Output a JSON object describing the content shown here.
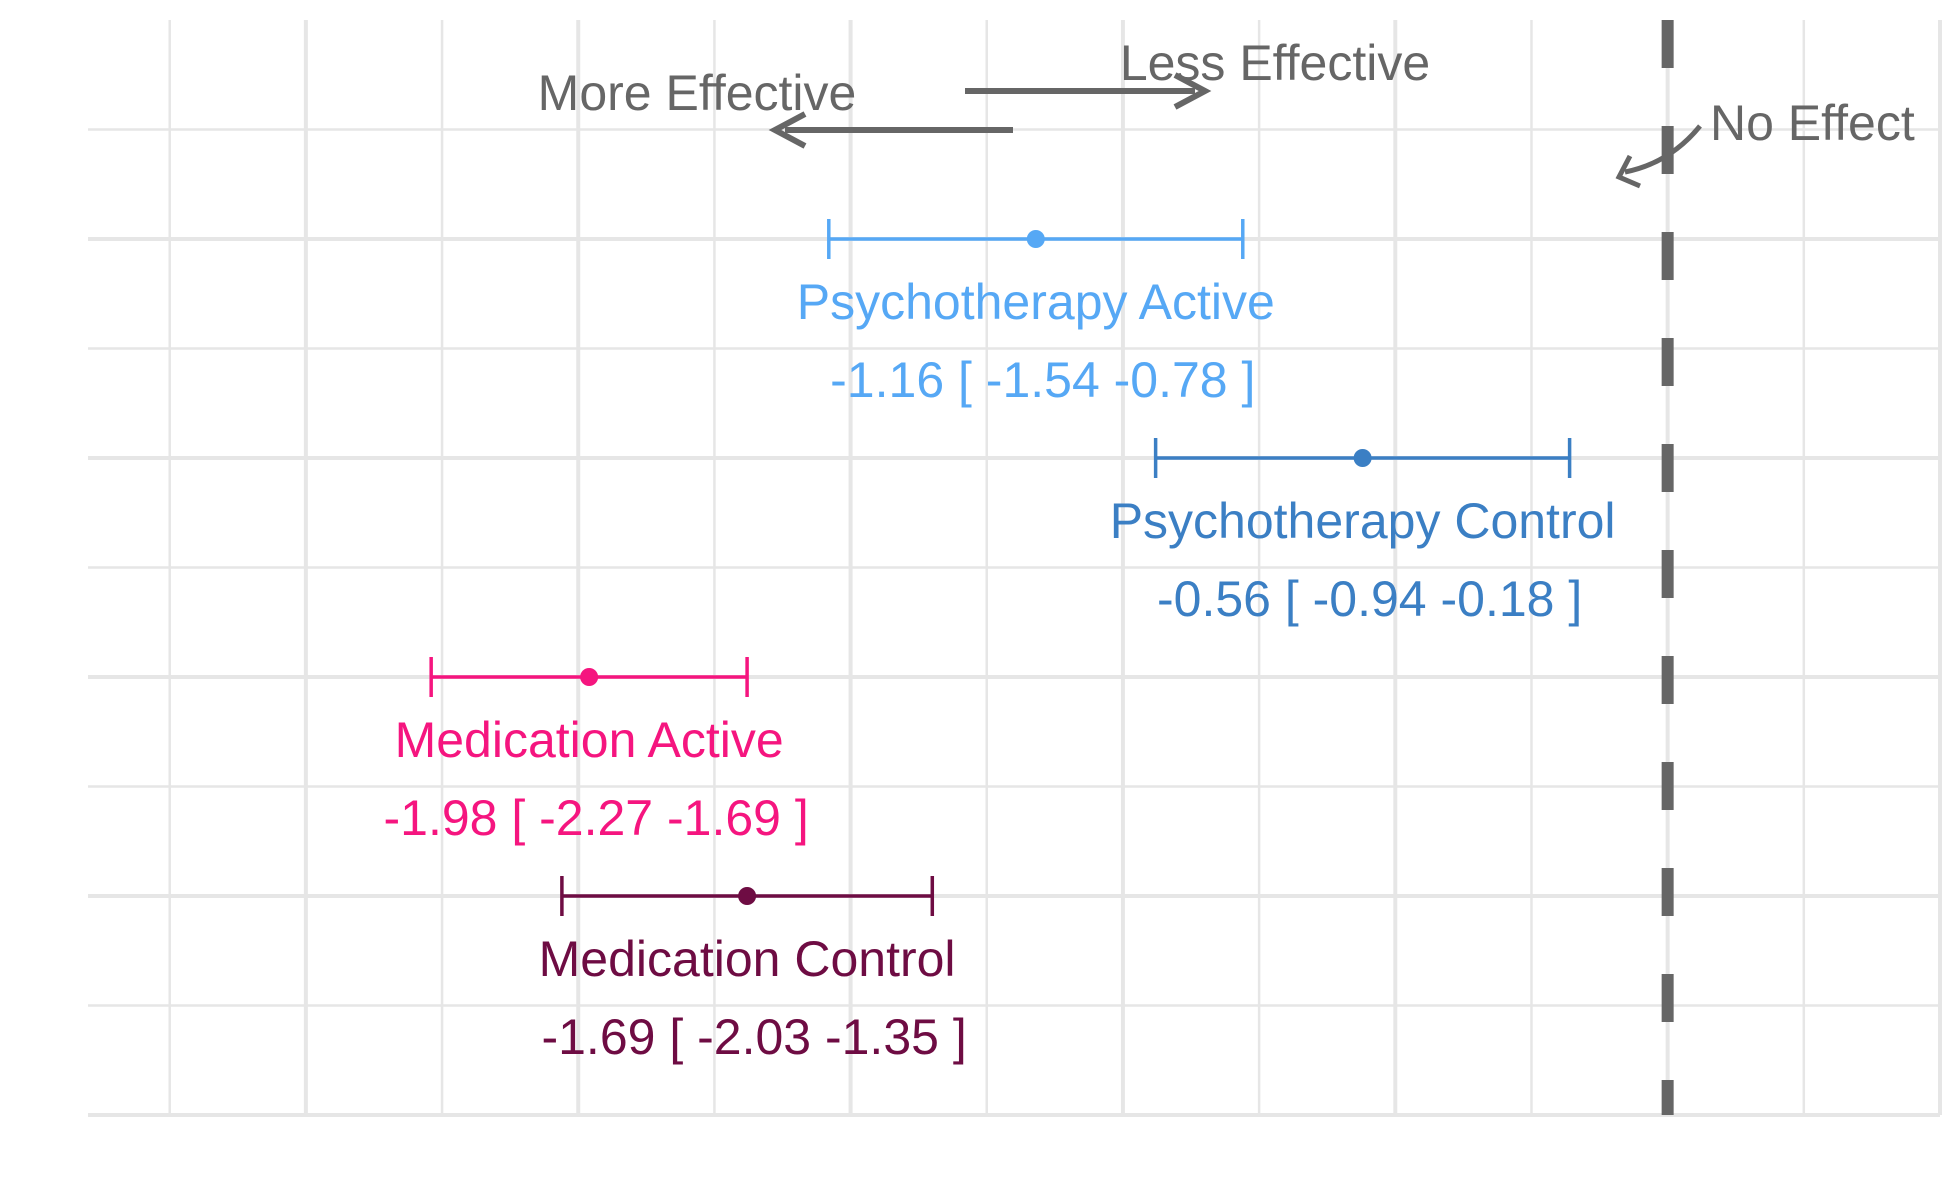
{
  "chart_data": {
    "type": "forest",
    "title": "",
    "xlabel": "",
    "ylabel": "",
    "xlim": [
      -2.9,
      0.5
    ],
    "ylim": [
      -4.0,
      1.0
    ],
    "grid": true,
    "reference_line": {
      "x": 0,
      "style": "dashed",
      "color": "#666666",
      "label": "No Effect"
    },
    "direction_annotations": {
      "more": "More Effective",
      "less": "Less Effective"
    },
    "series": [
      {
        "name": "Psychotherapy Active",
        "estimate": -1.16,
        "lower": -1.54,
        "upper": -0.78,
        "y": 0,
        "ci_label": "-1.16 [ -1.54 -0.78 ]",
        "color": "#56A8F5"
      },
      {
        "name": "Psychotherapy Control",
        "estimate": -0.56,
        "lower": -0.94,
        "upper": -0.18,
        "y": -1,
        "ci_label": "-0.56 [ -0.94 -0.18 ]",
        "color": "#3B7FC4"
      },
      {
        "name": "Medication Active",
        "estimate": -1.98,
        "lower": -2.27,
        "upper": -1.69,
        "y": -2,
        "ci_label": "-1.98 [ -2.27 -1.69 ]",
        "color": "#F5157F"
      },
      {
        "name": "Medication Control",
        "estimate": -1.69,
        "lower": -2.03,
        "upper": -1.35,
        "y": -3,
        "ci_label": "-1.69 [ -2.03 -1.35 ]",
        "color": "#6E0C43"
      }
    ]
  }
}
